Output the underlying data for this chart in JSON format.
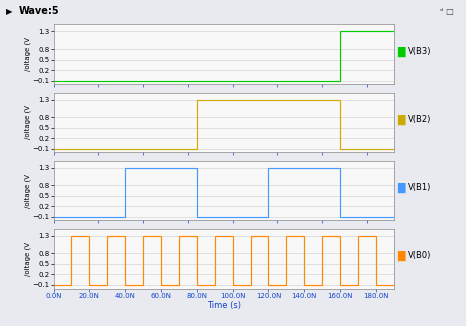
{
  "title": "Wave:5",
  "xlabel": "Time (s)",
  "ylabel": "/oltage (V",
  "yticks": [
    -0.1,
    0.2,
    0.5,
    0.8,
    1.3
  ],
  "ylim": [
    -0.2,
    1.5
  ],
  "xlim": [
    0,
    190
  ],
  "xtick_labels": [
    "0.0N",
    "20.0N",
    "40.0N",
    "60.0N",
    "80.0N",
    "100.0N",
    "120.0N",
    "140.0N",
    "160.0N",
    "180.0N"
  ],
  "xtick_vals": [
    0,
    20,
    40,
    60,
    80,
    100,
    120,
    140,
    160,
    180
  ],
  "signals": [
    {
      "name": "V(B3)",
      "color": "#00cc00",
      "low": -0.1,
      "high": 1.3,
      "transitions": [
        0,
        160,
        190
      ],
      "values": [
        0,
        1,
        1
      ]
    },
    {
      "name": "V(B2)",
      "color": "#ccaa00",
      "low": -0.1,
      "high": 1.3,
      "transitions": [
        0,
        80,
        160,
        190
      ],
      "values": [
        0,
        1,
        0,
        0
      ]
    },
    {
      "name": "V(B1)",
      "color": "#4499ff",
      "low": -0.1,
      "high": 1.3,
      "transitions": [
        0,
        40,
        80,
        120,
        160,
        190
      ],
      "values": [
        0,
        1,
        0,
        1,
        0,
        0
      ]
    },
    {
      "name": "V(B0)",
      "color": "#ff8800",
      "low": -0.1,
      "high": 1.3,
      "transitions": [
        0,
        10,
        20,
        30,
        40,
        50,
        60,
        70,
        80,
        90,
        100,
        110,
        120,
        130,
        140,
        150,
        160,
        170,
        180,
        190
      ],
      "values": [
        0,
        1,
        0,
        1,
        0,
        1,
        0,
        1,
        0,
        1,
        0,
        1,
        0,
        1,
        0,
        1,
        0,
        1,
        0,
        0
      ]
    }
  ],
  "title_bar_color": "#b8bfd0",
  "plot_bg_color": "#f8f8f8",
  "fig_bg_color": "#e8eaf0",
  "grid_color": "#cccccc",
  "title_fontsize": 7,
  "label_fontsize": 5,
  "tick_fontsize": 5,
  "legend_fontsize": 6
}
